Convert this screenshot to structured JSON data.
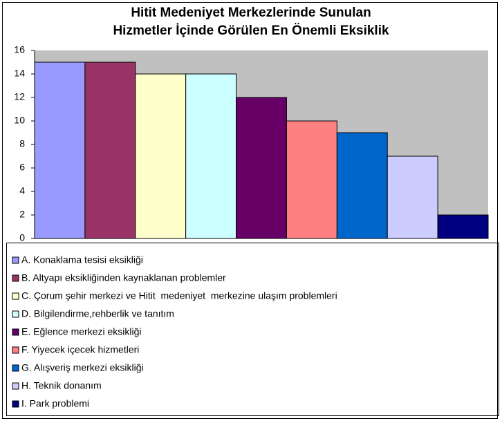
{
  "chart_data": {
    "type": "bar",
    "title": [
      "Hitit Medeniyet Merkezlerinde Sunulan",
      "Hizmetler İçinde Görülen En Önemli Eksiklik"
    ],
    "series": [
      {
        "name": "A. Konaklama tesisi eksikliği",
        "color": "#9999ff",
        "values": [
          15
        ]
      },
      {
        "name": "B. Altyapı eksikliğinden kaynaklanan problemler",
        "color": "#993366",
        "values": [
          15
        ]
      },
      {
        "name": "C. Çorum şehir merkezi ve Hitit  medeniyet  merkezine ulaşım problemleri",
        "color": "#ffffcc",
        "values": [
          14
        ]
      },
      {
        "name": "D. Bilgilendirme,rehberlik ve tanıtım",
        "color": "#ccffff",
        "values": [
          14
        ]
      },
      {
        "name": "E. Eğlence merkezi eksikliği",
        "color": "#660066",
        "values": [
          12
        ]
      },
      {
        "name": "F. Yiyecek içecek hizmetleri",
        "color": "#ff8080",
        "values": [
          10
        ]
      },
      {
        "name": "G. Alışveriş merkezi eksikliği",
        "color": "#0066cc",
        "values": [
          9
        ]
      },
      {
        "name": "H. Teknik donanım",
        "color": "#ccccff",
        "values": [
          7
        ]
      },
      {
        "name": "I. Park problemi",
        "color": "#000080",
        "values": [
          2
        ]
      }
    ],
    "ylim": [
      0,
      16
    ],
    "yticks": [
      0,
      2,
      4,
      6,
      8,
      10,
      12,
      14,
      16
    ],
    "plot_color": "#c0c0c0",
    "legend": "bottom"
  }
}
